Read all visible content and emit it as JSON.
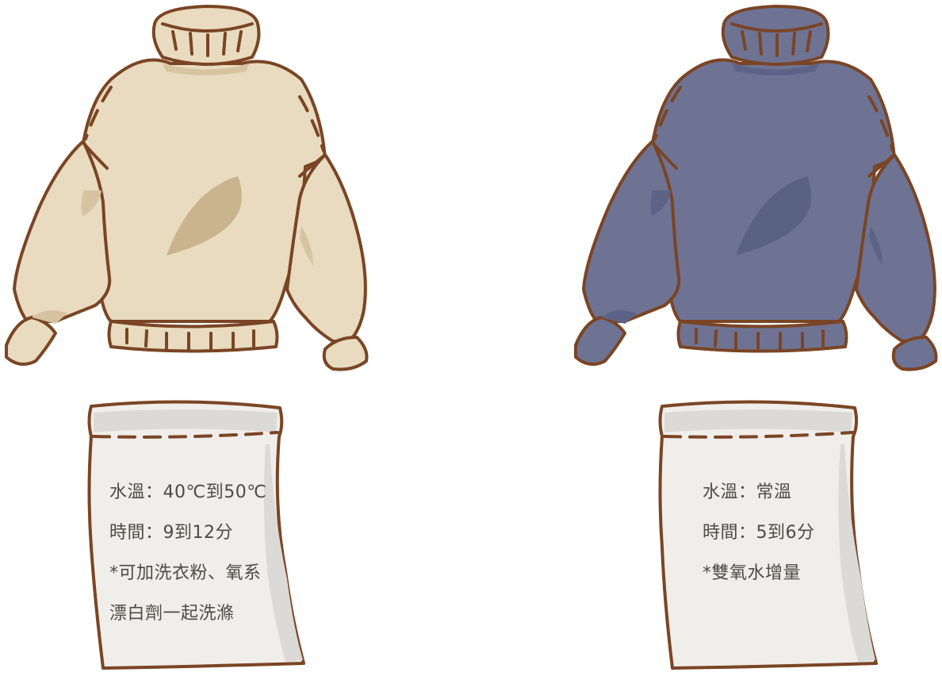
{
  "items": [
    {
      "id": "beige",
      "colors": {
        "body": "#e8dbbf",
        "shade": "#d6c4a0",
        "patch": "#c9b48e",
        "outline": "#7a4524"
      },
      "card": {
        "lines": [
          "水溫：40℃到50℃",
          "時間：9到12分",
          "*可加洗衣粉、氧系",
          "漂白劑一起洗滌"
        ]
      }
    },
    {
      "id": "navy",
      "colors": {
        "body": "#6e7394",
        "shade": "#5d6386",
        "patch": "#5a6283",
        "outline": "#7a4524"
      },
      "card": {
        "lines": [
          "水溫：常溫",
          "時間：5到6分",
          "*雙氧水增量"
        ]
      }
    }
  ],
  "card_colors": {
    "paper": "#f0eeea",
    "shade": "#dcdad6",
    "outline": "#7a4524"
  }
}
